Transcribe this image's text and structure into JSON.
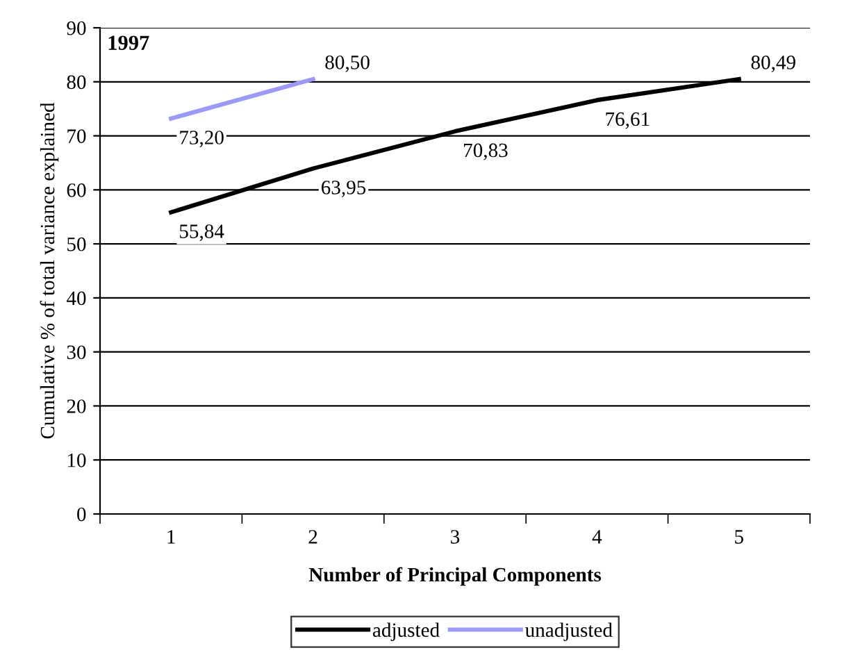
{
  "chart_data": {
    "type": "line",
    "xlabel": "Number of Principal Components",
    "ylabel": "Cumulative % of total variance explained",
    "annotations": [
      "1997"
    ],
    "categories": [
      "1",
      "2",
      "3",
      "4",
      "5"
    ],
    "series": [
      {
        "name": "adjusted",
        "color": "#000000",
        "values": [
          55.84,
          63.95,
          70.83,
          76.61,
          80.49
        ],
        "value_labels": [
          "55,84",
          "63,95",
          "70,83",
          "76,61",
          "80,49"
        ]
      },
      {
        "name": "unadjusted",
        "color": "#9999ff",
        "values": [
          73.2,
          80.5,
          null,
          null,
          null
        ],
        "value_labels": [
          "73,20",
          "80,50",
          null,
          null,
          null
        ]
      }
    ],
    "ylim": [
      0,
      90
    ],
    "yticks": [
      0,
      10,
      20,
      30,
      40,
      50,
      60,
      70,
      80,
      90
    ],
    "grid": "y",
    "legend": "bottom",
    "marker": "none",
    "line_style": "solid"
  }
}
